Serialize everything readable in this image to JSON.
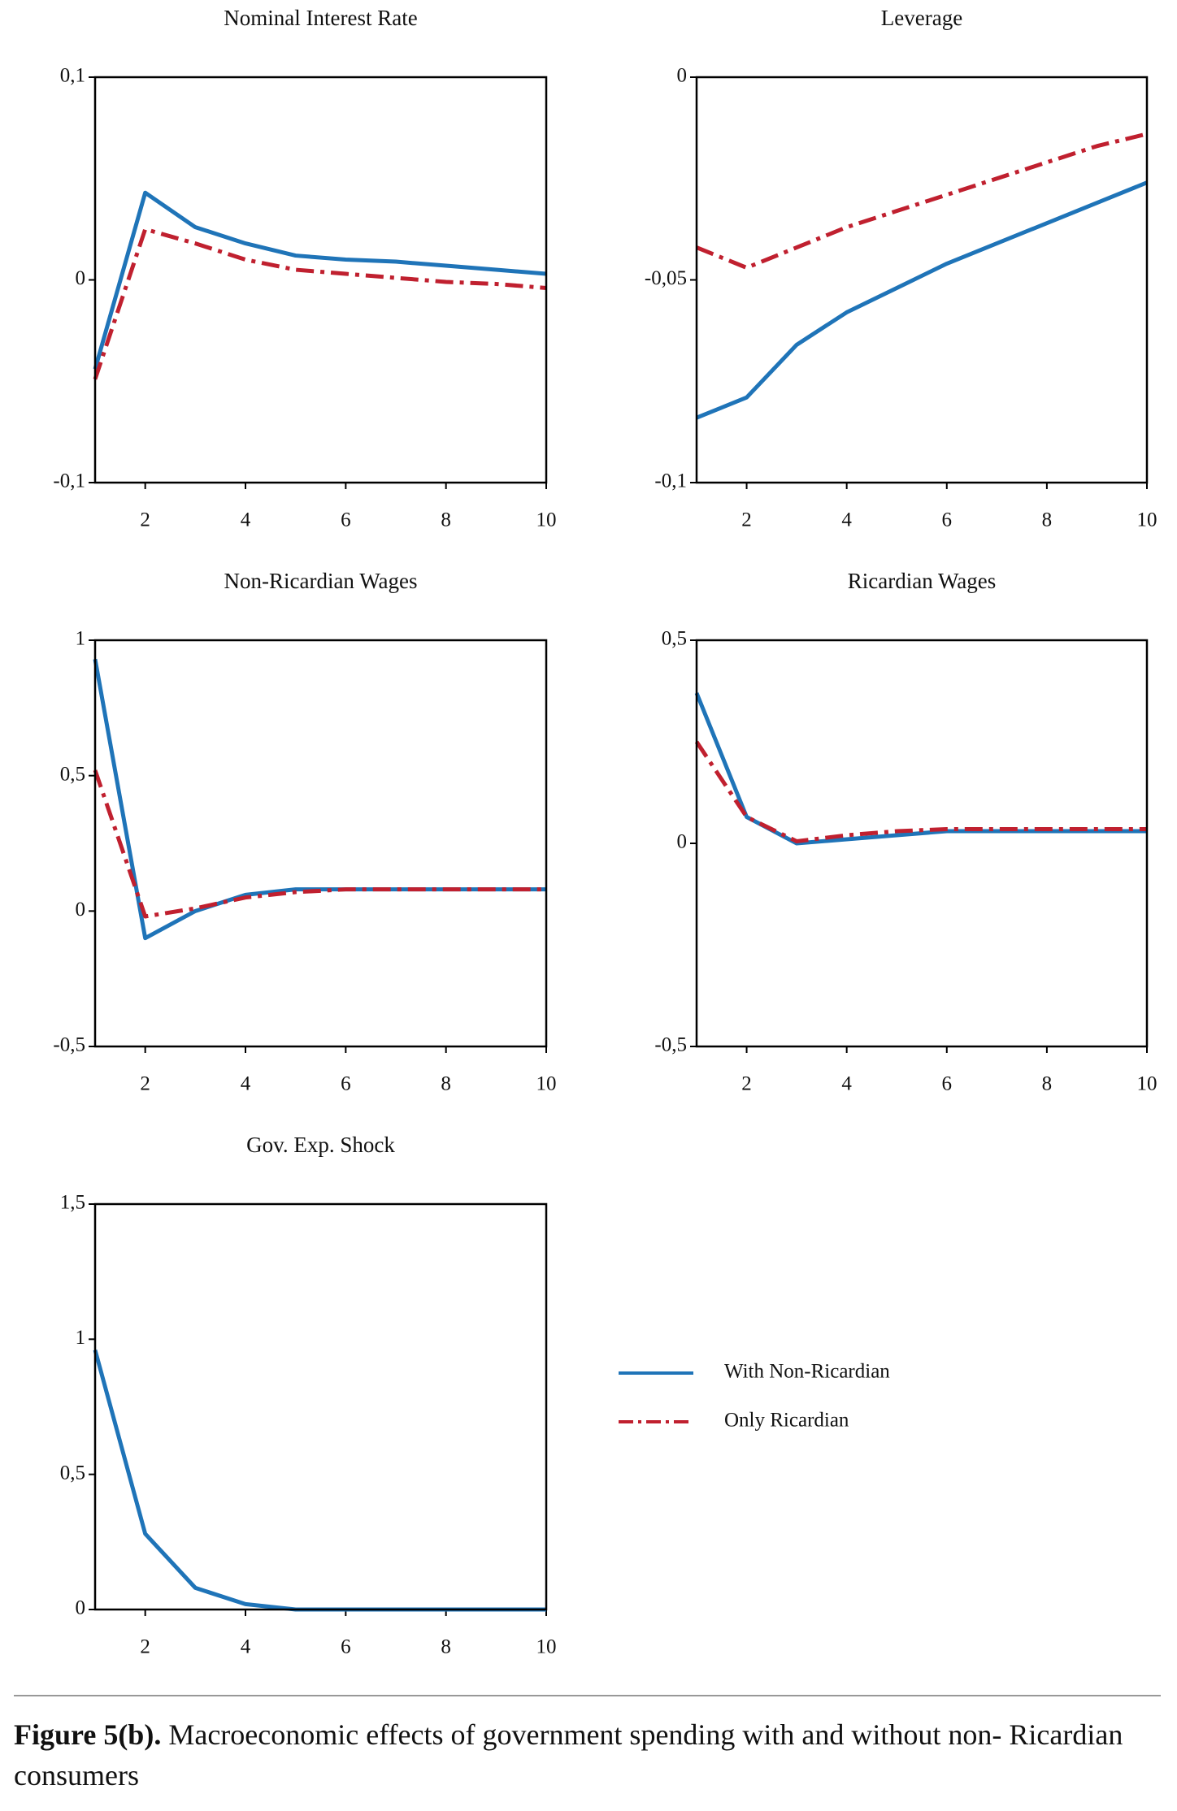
{
  "chart_data": [
    {
      "type": "line",
      "title": "Nominal Interest Rate",
      "x": [
        1,
        2,
        3,
        4,
        5,
        6,
        7,
        8,
        9,
        10
      ],
      "xlim": [
        1,
        10
      ],
      "xticks": [
        2,
        4,
        6,
        8,
        10
      ],
      "ylim": [
        -0.1,
        0.1
      ],
      "yticks": [
        {
          "value": -0.1,
          "label": "-0,1"
        },
        0,
        {
          "value": 0.1,
          "label": "0,1"
        }
      ],
      "series": [
        {
          "name": "With Non-Ricardian",
          "color": "#1f74b8",
          "values": [
            -0.044,
            0.043,
            0.026,
            0.018,
            0.012,
            0.01,
            0.009,
            0.007,
            0.005,
            0.003
          ]
        },
        {
          "name": "Only Ricardian",
          "color": "#c0202f",
          "values": [
            -0.049,
            0.025,
            0.018,
            0.01,
            0.005,
            0.003,
            0.001,
            -0.001,
            -0.002,
            -0.004
          ]
        }
      ]
    },
    {
      "type": "line",
      "title": "Leverage",
      "x": [
        1,
        2,
        3,
        4,
        5,
        6,
        7,
        8,
        9,
        10
      ],
      "xlim": [
        1,
        10
      ],
      "xticks": [
        2,
        4,
        6,
        8,
        10
      ],
      "ylim": [
        -0.1,
        0
      ],
      "yticks": [
        {
          "value": -0.1,
          "label": "-0,1"
        },
        {
          "value": -0.05,
          "label": "-0,05"
        },
        0
      ],
      "series": [
        {
          "name": "With Non-Ricardian",
          "color": "#1f74b8",
          "values": [
            -0.084,
            -0.079,
            -0.066,
            -0.058,
            -0.052,
            -0.046,
            -0.041,
            -0.036,
            -0.031,
            -0.026
          ]
        },
        {
          "name": "Only Ricardian",
          "color": "#c0202f",
          "values": [
            -0.042,
            -0.047,
            -0.042,
            -0.037,
            -0.033,
            -0.029,
            -0.025,
            -0.021,
            -0.017,
            -0.014
          ]
        }
      ]
    },
    {
      "type": "line",
      "title": "Non-Ricardian Wages",
      "x": [
        1,
        2,
        3,
        4,
        5,
        6,
        7,
        8,
        9,
        10
      ],
      "xlim": [
        1,
        10
      ],
      "xticks": [
        2,
        4,
        6,
        8,
        10
      ],
      "ylim": [
        -0.5,
        1
      ],
      "yticks": [
        {
          "value": -0.5,
          "label": "-0,5"
        },
        0,
        {
          "value": 0.5,
          "label": "0,5"
        },
        1
      ],
      "series": [
        {
          "name": "With Non-Ricardian",
          "color": "#1f74b8",
          "values": [
            0.93,
            -0.1,
            0.0,
            0.06,
            0.08,
            0.08,
            0.08,
            0.08,
            0.08,
            0.08
          ]
        },
        {
          "name": "Only Ricardian",
          "color": "#c0202f",
          "values": [
            0.52,
            -0.02,
            0.01,
            0.05,
            0.07,
            0.08,
            0.08,
            0.08,
            0.08,
            0.08
          ]
        }
      ]
    },
    {
      "type": "line",
      "title": "Ricardian Wages",
      "x": [
        1,
        2,
        3,
        4,
        5,
        6,
        7,
        8,
        9,
        10
      ],
      "xlim": [
        1,
        10
      ],
      "xticks": [
        2,
        4,
        6,
        8,
        10
      ],
      "ylim": [
        -0.5,
        0.5
      ],
      "yticks": [
        {
          "value": -0.5,
          "label": "-0,5"
        },
        0,
        {
          "value": 0.5,
          "label": "0,5"
        }
      ],
      "series": [
        {
          "name": "With Non-Ricardian",
          "color": "#1f74b8",
          "values": [
            0.37,
            0.065,
            0.0,
            0.01,
            0.02,
            0.03,
            0.03,
            0.03,
            0.03,
            0.03
          ]
        },
        {
          "name": "Only Ricardian",
          "color": "#c0202f",
          "values": [
            0.25,
            0.065,
            0.005,
            0.02,
            0.03,
            0.035,
            0.035,
            0.035,
            0.035,
            0.035
          ]
        }
      ]
    },
    {
      "type": "line",
      "title": "Gov. Exp. Shock",
      "x": [
        1,
        2,
        3,
        4,
        5,
        6,
        7,
        8,
        9,
        10
      ],
      "xlim": [
        1,
        10
      ],
      "xticks": [
        2,
        4,
        6,
        8,
        10
      ],
      "ylim": [
        0,
        1.5
      ],
      "yticks": [
        0,
        {
          "value": 0.5,
          "label": "0,5"
        },
        1,
        {
          "value": 1.5,
          "label": "1,5"
        }
      ],
      "series": [
        {
          "name": "With Non-Ricardian",
          "color": "#1f74b8",
          "values": [
            0.96,
            0.28,
            0.08,
            0.02,
            0,
            0,
            0,
            0,
            0,
            0
          ]
        }
      ]
    }
  ],
  "caption": {
    "label": "Figure 5(b).",
    "text": "Macroeconomic effects of government spending with and without non- Ricardian consumers"
  }
}
